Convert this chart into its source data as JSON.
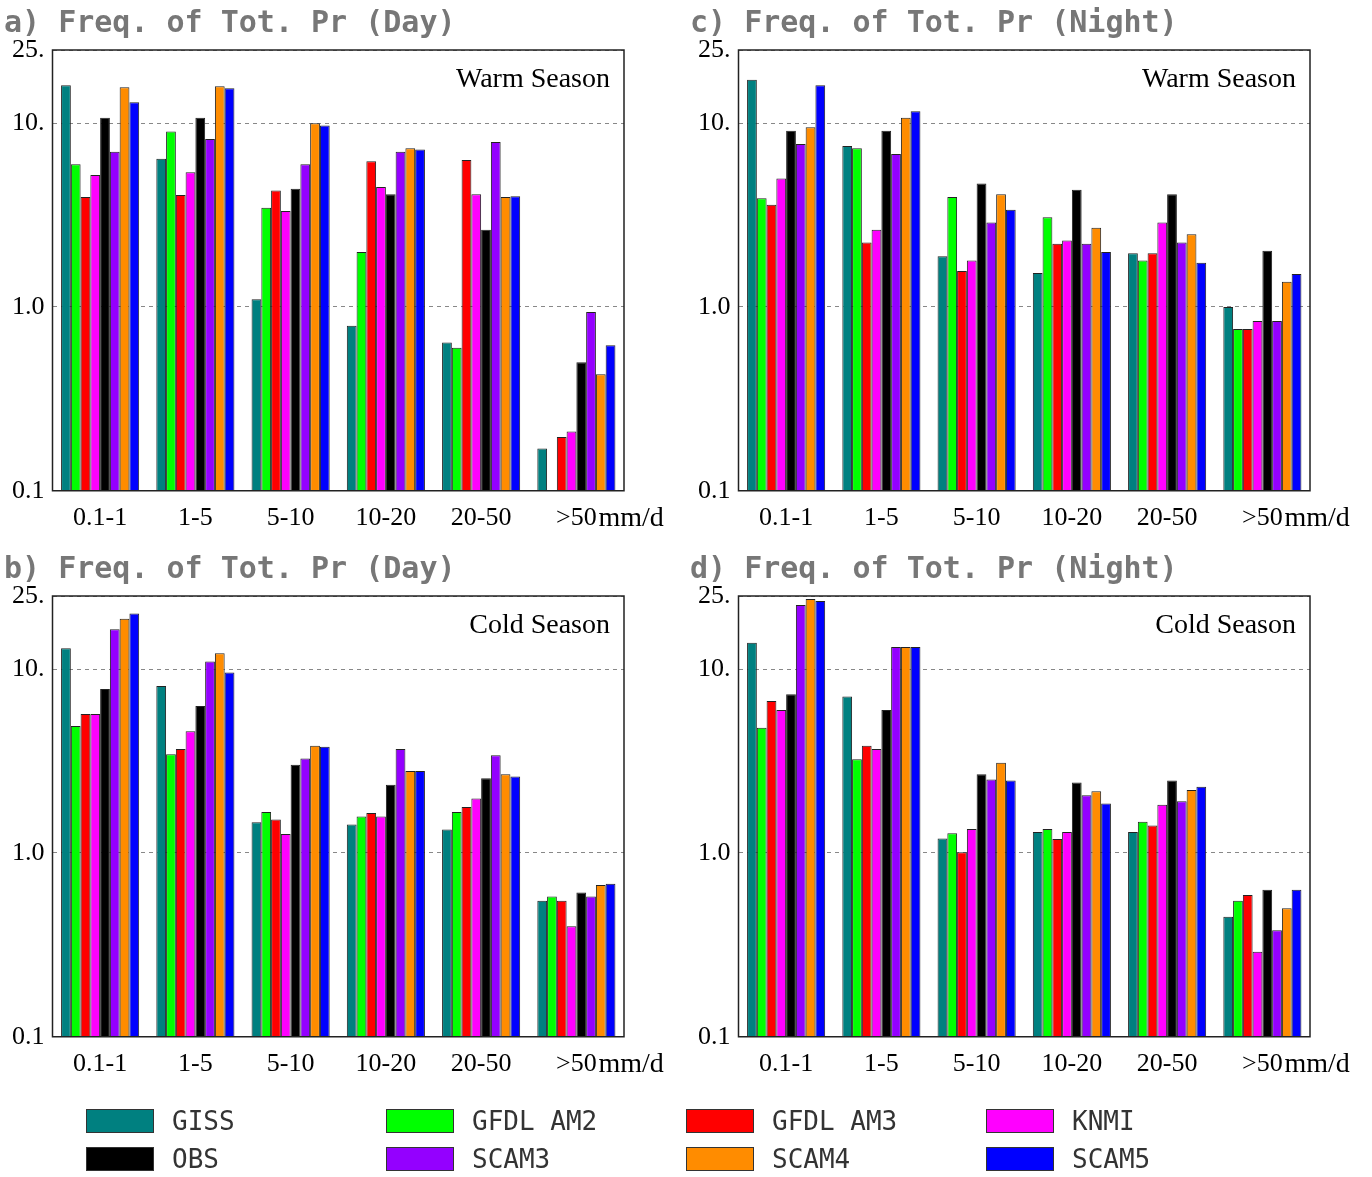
{
  "chart_data": [
    {
      "type": "bar",
      "title": "a) Freq. of Tot. Pr (Day)",
      "xlabel": "mm/d",
      "annotations": [
        "Warm Season"
      ],
      "categories": [
        "0.1-1",
        "1-5",
        "5-10",
        "10-20",
        "20-50",
        ">50"
      ],
      "log": "y",
      "ylim": [
        0.1,
        25
      ],
      "yticks": [
        {
          "value": 0.1,
          "label": "0.1"
        },
        {
          "value": 1,
          "label": "1.0"
        },
        {
          "value": 10,
          "label": "10."
        },
        {
          "value": 25,
          "label": "25."
        }
      ],
      "grid": "y",
      "legend": "bottom",
      "series": [
        {
          "name": "GISS",
          "color": "#008080",
          "values": [
            16.1,
            6.4,
            1.1,
            0.79,
            0.64,
            0.17
          ]
        },
        {
          "name": "GFDL AM2",
          "color": "#00ff00",
          "values": [
            5.97,
            9.0,
            3.47,
            1.99,
            0.6,
            null
          ]
        },
        {
          "name": "GFDL AM3",
          "color": "#ff0000",
          "values": [
            3.96,
            4.07,
            4.3,
            6.2,
            6.3,
            0.196
          ]
        },
        {
          "name": "KNMI",
          "color": "#ff00ff",
          "values": [
            5.23,
            5.4,
            3.33,
            4.5,
            4.1,
            0.21
          ]
        },
        {
          "name": "OBS",
          "color": "#000000",
          "values": [
            10.7,
            10.7,
            4.4,
            4.1,
            2.63,
            0.5
          ]
        },
        {
          "name": "SCAM3",
          "color": "#9400ff",
          "values": [
            7.0,
            8.2,
            5.97,
            7.0,
            7.9,
            0.94
          ]
        },
        {
          "name": "SCAM4",
          "color": "#ff8c00",
          "values": [
            15.7,
            15.9,
            10.0,
            7.3,
            3.96,
            0.43
          ]
        },
        {
          "name": "SCAM5",
          "color": "#0000ff",
          "values": [
            13.0,
            15.5,
            9.7,
            7.2,
            4.0,
            0.62
          ]
        }
      ]
    },
    {
      "type": "bar",
      "title": "c) Freq. of Tot. Pr (Night)",
      "xlabel": "mm/d",
      "annotations": [
        "Warm Season"
      ],
      "categories": [
        "0.1-1",
        "1-5",
        "5-10",
        "10-20",
        "20-50",
        ">50"
      ],
      "log": "y",
      "ylim": [
        0.1,
        25
      ],
      "yticks": [
        {
          "value": 0.1,
          "label": "0.1"
        },
        {
          "value": 1,
          "label": "1.0"
        },
        {
          "value": 10,
          "label": "10."
        },
        {
          "value": 25,
          "label": "25."
        }
      ],
      "grid": "y",
      "series": [
        {
          "color": "#008080",
          "values": [
            17.2,
            7.5,
            1.89,
            1.53,
            1.96,
            1.0
          ]
        },
        {
          "color": "#00ff00",
          "values": [
            3.9,
            7.3,
            3.96,
            3.08,
            1.79,
            0.76
          ]
        },
        {
          "color": "#ff0000",
          "values": [
            3.6,
            2.24,
            1.57,
            2.21,
            1.96,
            0.76
          ]
        },
        {
          "color": "#ff00ff",
          "values": [
            5.0,
            2.63,
            1.79,
            2.3,
            2.88,
            0.84
          ]
        },
        {
          "color": "#000000",
          "values": [
            9.1,
            9.1,
            4.7,
            4.34,
            4.1,
            2.02
          ]
        },
        {
          "color": "#9400ff",
          "values": [
            7.7,
            6.8,
            2.88,
            2.21,
            2.24,
            0.84
          ]
        },
        {
          "color": "#ff8c00",
          "values": [
            9.5,
            10.7,
            4.1,
            2.7,
            2.49,
            1.37
          ]
        },
        {
          "color": "#0000ff",
          "values": [
            16.1,
            11.6,
            3.38,
            1.99,
            1.74,
            1.51
          ]
        }
      ]
    },
    {
      "type": "bar",
      "title": "b) Freq. of Tot. Pr (Day)",
      "xlabel": "mm/d",
      "annotations": [
        "Cold Season"
      ],
      "categories": [
        "0.1-1",
        "1-5",
        "5-10",
        "10-20",
        "20-50",
        ">50"
      ],
      "log": "y",
      "ylim": [
        0.1,
        25
      ],
      "yticks": [
        {
          "value": 0.1,
          "label": "0.1"
        },
        {
          "value": 1,
          "label": "1.0"
        },
        {
          "value": 10,
          "label": "10."
        },
        {
          "value": 25,
          "label": "25."
        }
      ],
      "grid": "y",
      "series": [
        {
          "color": "#008080",
          "values": [
            13.0,
            8.1,
            1.47,
            1.43,
            1.34,
            0.55
          ]
        },
        {
          "color": "#00ff00",
          "values": [
            4.9,
            3.44,
            1.67,
            1.58,
            1.67,
            0.58
          ]
        },
        {
          "color": "#ff0000",
          "values": [
            5.7,
            3.68,
            1.52,
            1.65,
            1.78,
            0.55
          ]
        },
        {
          "color": "#ff00ff",
          "values": [
            5.7,
            4.6,
            1.27,
            1.58,
            1.98,
            0.4
          ]
        },
        {
          "color": "#000000",
          "values": [
            7.8,
            6.3,
            3.02,
            2.35,
            2.55,
            0.61
          ]
        },
        {
          "color": "#9400ff",
          "values": [
            16.5,
            11.0,
            3.27,
            3.68,
            3.4,
            0.58
          ]
        },
        {
          "color": "#ff8c00",
          "values": [
            18.8,
            12.2,
            3.83,
            2.79,
            2.68,
            0.67
          ]
        },
        {
          "color": "#0000ff",
          "values": [
            20.1,
            9.6,
            3.78,
            2.79,
            2.61,
            0.68
          ]
        }
      ]
    },
    {
      "type": "bar",
      "title": "d) Freq. of Tot. Pr (Night)",
      "xlabel": "mm/d",
      "annotations": [
        "Cold Season"
      ],
      "categories": [
        "0.1-1",
        "1-5",
        "5-10",
        "10-20",
        "20-50",
        ">50"
      ],
      "log": "y",
      "ylim": [
        0.1,
        25
      ],
      "yticks": [
        {
          "value": 0.1,
          "label": "0.1"
        },
        {
          "value": 1,
          "label": "1.0"
        },
        {
          "value": 10,
          "label": "10."
        },
        {
          "value": 25,
          "label": "25."
        }
      ],
      "grid": "y",
      "series": [
        {
          "color": "#008080",
          "values": [
            13.9,
            7.1,
            1.2,
            1.3,
            1.3,
            0.45
          ]
        },
        {
          "color": "#00ff00",
          "values": [
            4.8,
            3.23,
            1.28,
            1.35,
            1.48,
            0.55
          ]
        },
        {
          "color": "#ff0000",
          "values": [
            6.7,
            3.83,
            1.01,
            1.19,
            1.41,
            0.59
          ]
        },
        {
          "color": "#ff00ff",
          "values": [
            6.0,
            3.68,
            1.35,
            1.3,
            1.83,
            0.29
          ]
        },
        {
          "color": "#000000",
          "values": [
            7.3,
            6.0,
            2.68,
            2.42,
            2.48,
            0.63
          ]
        },
        {
          "color": "#9400ff",
          "values": [
            22.3,
            13.2,
            2.51,
            2.06,
            1.91,
            0.38
          ]
        },
        {
          "color": "#ff8c00",
          "values": [
            24.1,
            13.2,
            3.1,
            2.17,
            2.2,
            0.5
          ]
        },
        {
          "color": "#0000ff",
          "values": [
            23.5,
            13.2,
            2.48,
            1.86,
            2.29,
            0.63
          ]
        }
      ]
    }
  ]
}
